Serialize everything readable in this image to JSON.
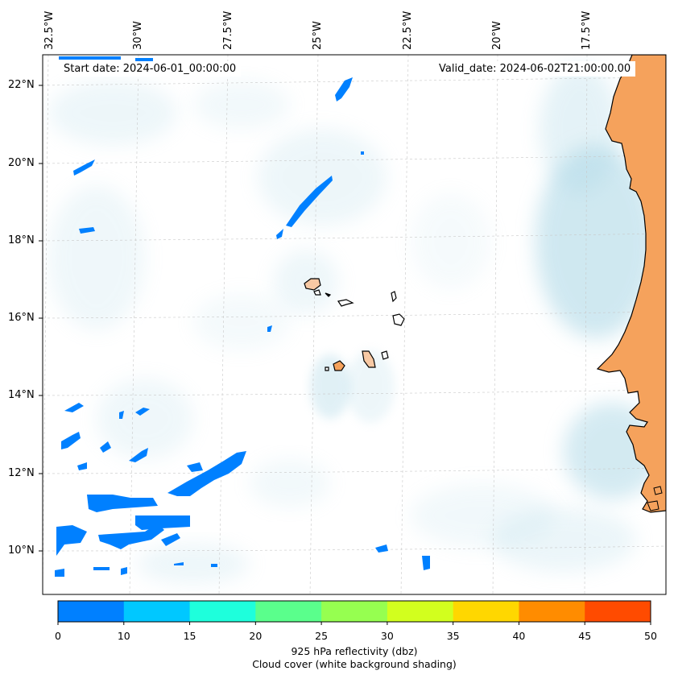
{
  "header": {
    "start_date": "Start date: 2024-06-01_00:00:00",
    "valid_date": "Valid_date: 2024-06-02T21:00:00.00"
  },
  "longitude_labels": [
    "32.5°W",
    "30°W",
    "27.5°W",
    "25°W",
    "22.5°W",
    "20°W",
    "17.5°W"
  ],
  "latitude_labels": [
    "22°N",
    "20°N",
    "18°N",
    "16°N",
    "14°N",
    "12°N",
    "10°N"
  ],
  "colorbar": {
    "ticks": [
      "0",
      "10",
      "15",
      "20",
      "25",
      "30",
      "35",
      "40",
      "45",
      "50"
    ],
    "colors": [
      "#0080ff",
      "#00c8ff",
      "#1effdc",
      "#5aff8c",
      "#96ff50",
      "#d2ff1e",
      "#ffd700",
      "#ff8c00",
      "#ff4b00"
    ],
    "label_line1": "925 hPa reflectivity (dbz)",
    "label_line2": "Cloud cover (white background shading)"
  },
  "map_colors": {
    "land": "#f5a25c",
    "cloud": "#a9d6e5",
    "reflectivity_low": "#0080ff",
    "coastline": "#000000",
    "gridline": "#bbbbbb"
  },
  "regions": [
    "Cabo Verde islands",
    "West Africa coast"
  ]
}
